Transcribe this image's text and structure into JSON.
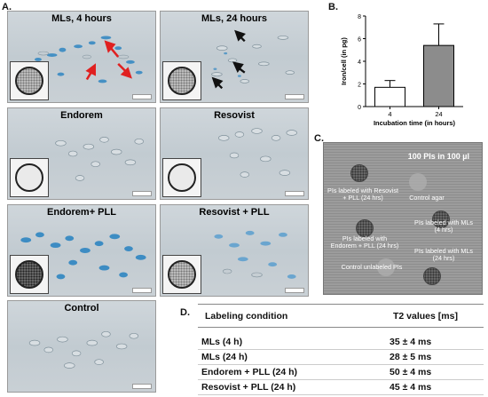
{
  "panel_a": {
    "letter": "A.",
    "tiles": [
      {
        "title": "MLs, 4 hours"
      },
      {
        "title": "MLs, 24 hours"
      },
      {
        "title": "Endorem"
      },
      {
        "title": "Resovist"
      },
      {
        "title": "Endorem+ PLL"
      },
      {
        "title": "Resovist + PLL"
      },
      {
        "title": "Control"
      }
    ],
    "colors": {
      "stain": "#2f86c2",
      "arrow_red": "#e02020",
      "arrow_black": "#111111"
    }
  },
  "panel_b": {
    "letter": "B.",
    "chart_data": {
      "type": "bar",
      "categories": [
        "4",
        "24"
      ],
      "values": [
        1.7,
        5.4
      ],
      "errors": [
        0.6,
        1.9
      ],
      "ylabel": "Iron/cell (in pg)",
      "xlabel": "Incubation time (in hours)",
      "ylim": [
        0,
        8
      ],
      "yticks": [
        "0",
        "2",
        "4",
        "6",
        "8"
      ],
      "bar_colors": [
        "#ffffff",
        "#8c8c8c"
      ],
      "grid": false
    }
  },
  "panel_c": {
    "letter": "C.",
    "title": "100 PIs in 100 µl",
    "labels": {
      "resovist_pll": "PIs labeled with Resovist + PLL (24 hrs)",
      "control_agar": "Control agar",
      "mls_4": "PIs labeled with MLs (4 hrs)",
      "endorem_pll": "PIs labeled with Endorem + PLL (24 hrs)",
      "control_unlabeled": "Control unlabeled PIs",
      "mls_24": "PIs labeled with MLs (24 hrs)"
    }
  },
  "panel_d": {
    "letter": "D.",
    "headers": [
      "Labeling condition",
      "T2 values [ms]"
    ],
    "rows": [
      {
        "condition": "MLs (4 h)",
        "value": "35 ± 4 ms"
      },
      {
        "condition": "MLs (24 h)",
        "value": "28 ± 5 ms"
      },
      {
        "condition": "Endorem + PLL (24 h)",
        "value": "50 ± 4 ms"
      },
      {
        "condition": "Resovist + PLL (24 h)",
        "value": "45 ± 4 ms"
      }
    ]
  }
}
